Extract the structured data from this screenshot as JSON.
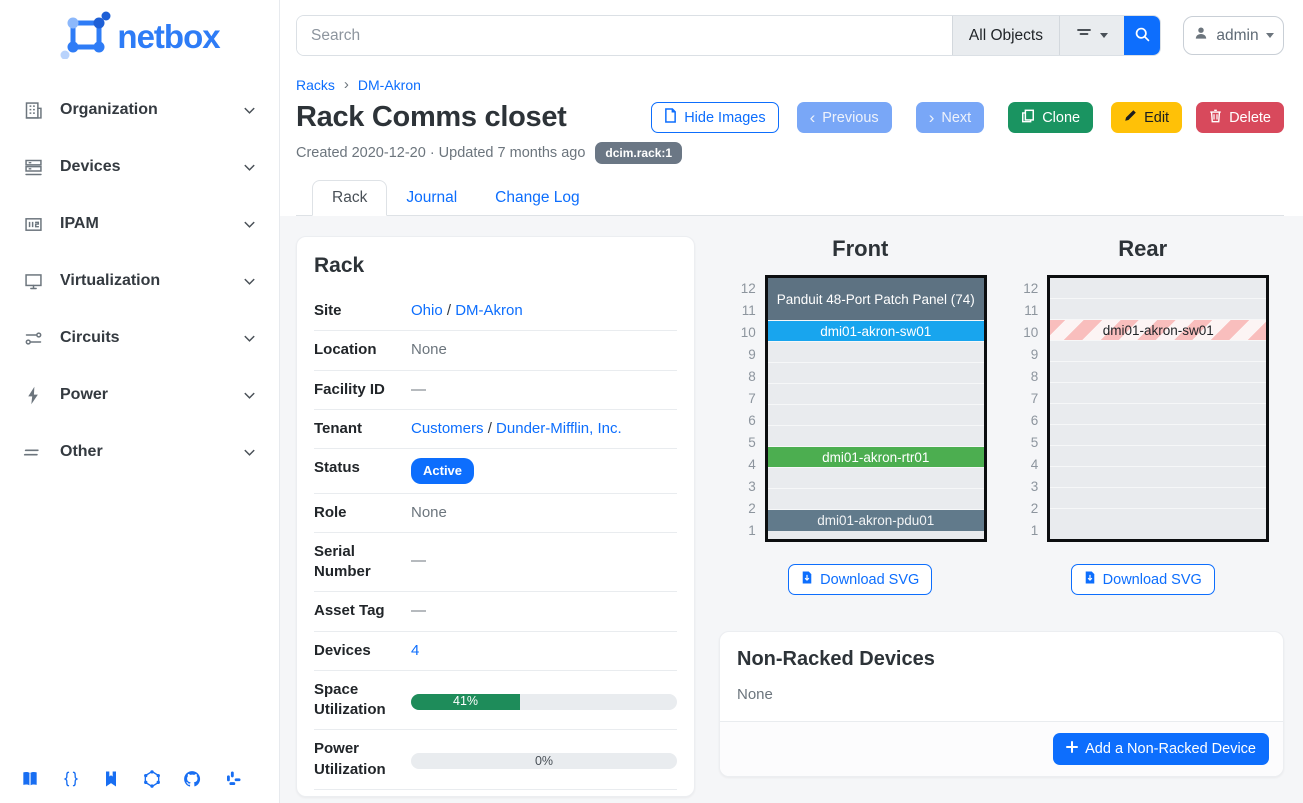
{
  "colors": {
    "primary": "#0d6efd",
    "success": "#1a9461",
    "warning": "#ffc107",
    "danger": "#d8495c",
    "progress_green": "#1e8c5a",
    "badge_slate": "#6b7785"
  },
  "sidebar": {
    "logo_text": "netbox",
    "items": [
      {
        "label": "Organization",
        "icon": "building-icon"
      },
      {
        "label": "Devices",
        "icon": "server-icon"
      },
      {
        "label": "IPAM",
        "icon": "ipam-icon"
      },
      {
        "label": "Virtualization",
        "icon": "monitor-icon"
      },
      {
        "label": "Circuits",
        "icon": "circuits-icon"
      },
      {
        "label": "Power",
        "icon": "power-icon"
      },
      {
        "label": "Other",
        "icon": "lines-icon"
      }
    ],
    "footer_icons": [
      "docs-book-icon",
      "api-braces-icon",
      "bookmark-icon",
      "graphql-icon",
      "github-icon",
      "slack-icon"
    ]
  },
  "topbar": {
    "search_placeholder": "Search",
    "object_type": "All Objects",
    "user": "admin"
  },
  "breadcrumb": {
    "items": [
      "Racks",
      "DM-Akron"
    ],
    "separator": "›"
  },
  "header": {
    "title": "Rack Comms closet",
    "meta": "Created 2020-12-20 · Updated 7 months ago",
    "badge": "dcim.rack:1",
    "buttons": {
      "hide_images": "Hide Images",
      "previous": "Previous",
      "next": "Next",
      "clone": "Clone",
      "edit": "Edit",
      "delete": "Delete",
      "prev_glyph": "‹",
      "next_glyph": "›"
    }
  },
  "tabs": [
    {
      "label": "Rack",
      "active": true
    },
    {
      "label": "Journal",
      "active": false
    },
    {
      "label": "Change Log",
      "active": false
    }
  ],
  "rack_panel": {
    "title": "Rack",
    "rows": {
      "site": {
        "label": "Site",
        "link1": "Ohio",
        "sep": "/",
        "link2": "DM-Akron"
      },
      "location": {
        "label": "Location",
        "value": "None"
      },
      "facility": {
        "label": "Facility ID",
        "value": "—"
      },
      "tenant": {
        "label": "Tenant",
        "link1": "Customers",
        "sep": "/",
        "link2": "Dunder-Mifflin, Inc."
      },
      "status": {
        "label": "Status",
        "badge": "Active"
      },
      "role": {
        "label": "Role",
        "value": "None"
      },
      "serial": {
        "label": "Serial Number",
        "value": "—"
      },
      "asset": {
        "label": "Asset Tag",
        "value": "—"
      },
      "devices": {
        "label": "Devices",
        "link": "4"
      },
      "space": {
        "label": "Space Utilization",
        "percent": 41,
        "text": "41%"
      },
      "power": {
        "label": "Power Utilization",
        "percent": 0,
        "text": "0%"
      }
    }
  },
  "elevations": {
    "download_label": "Download SVG",
    "front": {
      "title": "Front",
      "units": 12,
      "slots": [
        {
          "units": [
            12,
            11
          ],
          "label": "Panduit 48-Port Patch Panel (74)",
          "color": "#5d7282",
          "text_color": "#ffffff"
        },
        {
          "units": [
            10
          ],
          "label": "dmi01-akron-sw01",
          "color": "#18a5ee",
          "text_color": "#ffffff"
        },
        {
          "units": [
            9
          ]
        },
        {
          "units": [
            8
          ]
        },
        {
          "units": [
            7
          ]
        },
        {
          "units": [
            6
          ]
        },
        {
          "units": [
            5
          ]
        },
        {
          "units": [
            4
          ],
          "label": "dmi01-akron-rtr01",
          "color": "#4cae50",
          "text_color": "#ffffff"
        },
        {
          "units": [
            3
          ]
        },
        {
          "units": [
            2
          ]
        },
        {
          "units": [
            1
          ],
          "label": "dmi01-akron-pdu01",
          "color": "#617a8b",
          "text_color": "#f1f3f5"
        }
      ]
    },
    "rear": {
      "title": "Rear",
      "units": 12,
      "slots": [
        {
          "units": [
            12
          ]
        },
        {
          "units": [
            11
          ]
        },
        {
          "units": [
            10
          ],
          "label": "dmi01-akron-sw01",
          "striped": true,
          "text_color": "#212529"
        },
        {
          "units": [
            9
          ]
        },
        {
          "units": [
            8
          ]
        },
        {
          "units": [
            7
          ]
        },
        {
          "units": [
            6
          ]
        },
        {
          "units": [
            5
          ]
        },
        {
          "units": [
            4
          ]
        },
        {
          "units": [
            3
          ]
        },
        {
          "units": [
            2
          ]
        },
        {
          "units": [
            1
          ]
        }
      ]
    }
  },
  "nonracked": {
    "title": "Non-Racked Devices",
    "empty": "None",
    "add_button": "Add a Non-Racked Device"
  }
}
